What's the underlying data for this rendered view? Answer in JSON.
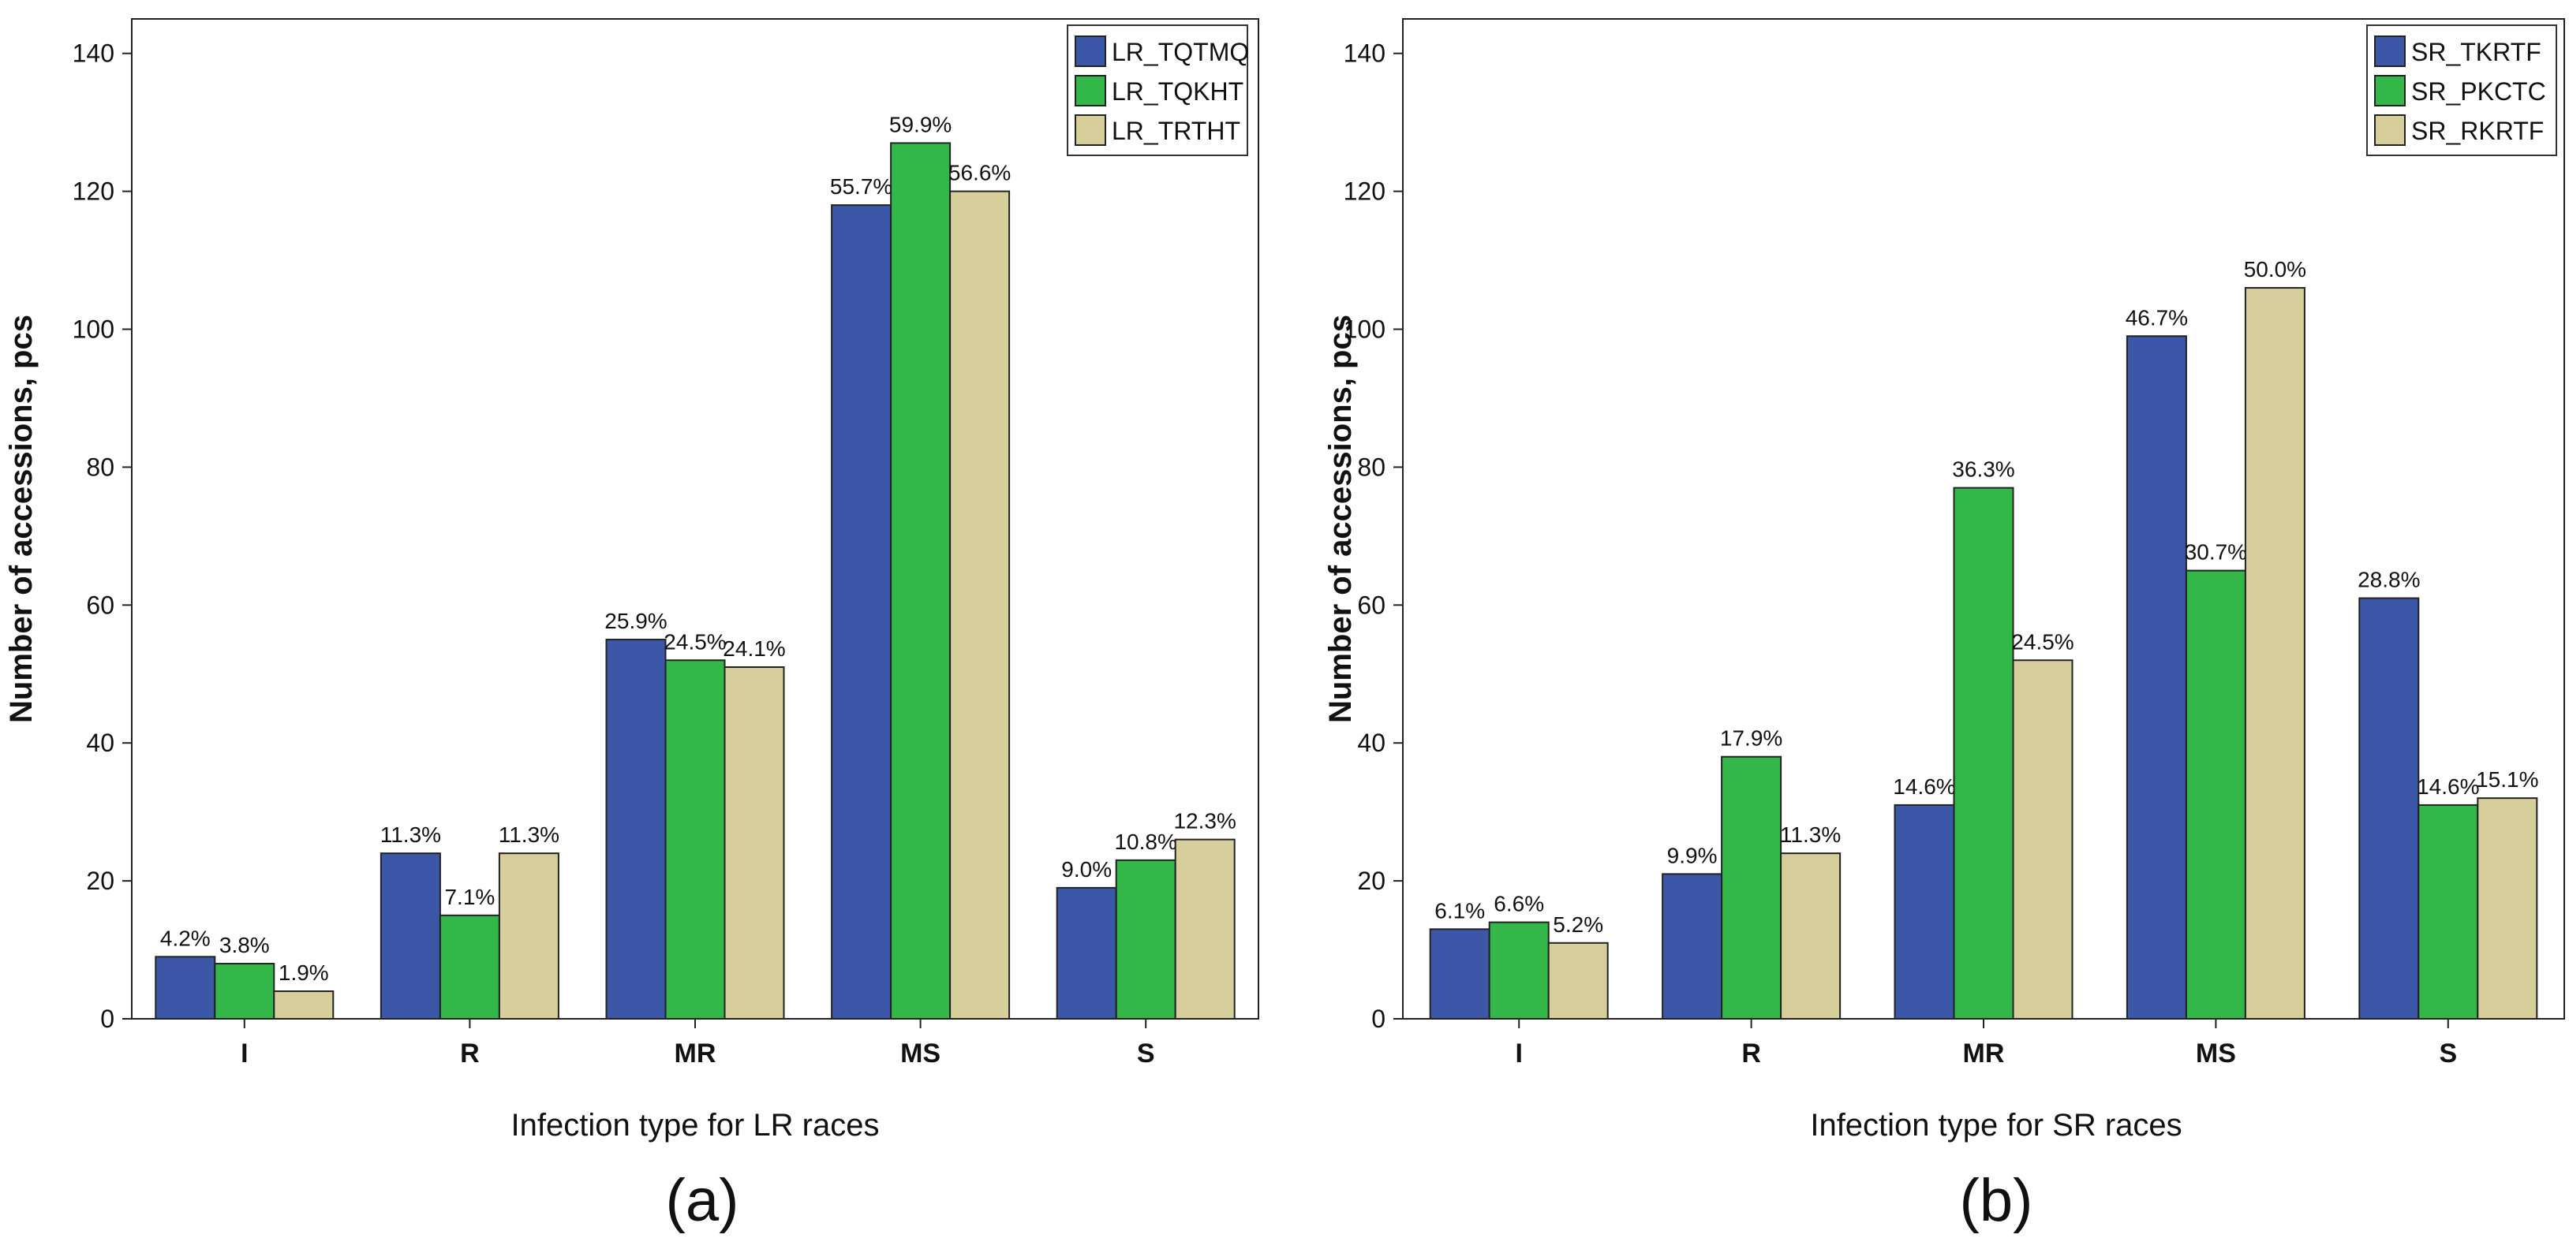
{
  "colors": {
    "blue": "#3c56a8",
    "green": "#33b748",
    "tan": "#d6cf9c"
  },
  "chart_data": [
    {
      "type": "bar",
      "panel_label": "(a)",
      "xlabel": "Infection type for LR races",
      "ylabel": "Number of accessions, pcs",
      "ylim": [
        0,
        145
      ],
      "yticks": [
        "0",
        "20",
        "40",
        "60",
        "80",
        "100",
        "120",
        "140"
      ],
      "categories": [
        "I",
        "R",
        "MR",
        "MS",
        "S"
      ],
      "legend_position": "top-right",
      "series": [
        {
          "name": "LR_TQTMQ",
          "values": [
            9,
            24,
            55,
            118,
            19
          ],
          "labels": [
            "4.2%",
            "11.3%",
            "25.9%",
            "55.7%",
            "9.0%"
          ]
        },
        {
          "name": "LR_TQKHT",
          "values": [
            8,
            15,
            52,
            127,
            23
          ],
          "labels": [
            "3.8%",
            "7.1%",
            "24.5%",
            "59.9%",
            "10.8%"
          ]
        },
        {
          "name": "LR_TRTHT",
          "values": [
            4,
            24,
            51,
            120,
            26
          ],
          "labels": [
            "1.9%",
            "11.3%",
            "24.1%",
            "56.6%",
            "12.3%"
          ]
        }
      ]
    },
    {
      "type": "bar",
      "panel_label": "(b)",
      "xlabel": "Infection type for SR races",
      "ylabel": "Number of accessions, pcs",
      "ylim": [
        0,
        145
      ],
      "yticks": [
        "0",
        "20",
        "40",
        "60",
        "80",
        "100",
        "120",
        "140"
      ],
      "categories": [
        "I",
        "R",
        "MR",
        "MS",
        "S"
      ],
      "legend_position": "top-right",
      "series": [
        {
          "name": "SR_TKRTF",
          "values": [
            13,
            21,
            31,
            99,
            61
          ],
          "labels": [
            "6.1%",
            "9.9%",
            "14.6%",
            "46.7%",
            "28.8%"
          ]
        },
        {
          "name": "SR_PKCTC",
          "values": [
            14,
            38,
            77,
            65,
            31
          ],
          "labels": [
            "6.6%",
            "17.9%",
            "36.3%",
            "30.7%",
            "14.6%"
          ]
        },
        {
          "name": "SR_RKRTF",
          "values": [
            11,
            24,
            52,
            106,
            32
          ],
          "labels": [
            "5.2%",
            "11.3%",
            "24.5%",
            "50.0%",
            "15.1%"
          ]
        }
      ]
    }
  ]
}
